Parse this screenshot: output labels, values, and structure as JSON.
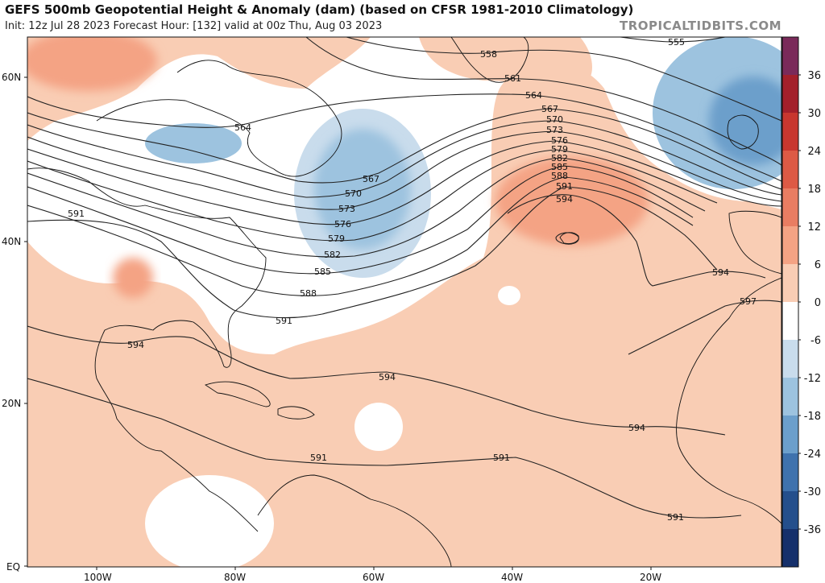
{
  "header": {
    "title": "GEFS 500mb Geopotential Height & Anomaly (dam) (based on CFSR 1981-2010 Climatology)",
    "subtitle": "Init: 12z Jul 28 2023   Forecast Hour: [132]   valid at 00z Thu, Aug 03 2023",
    "site": "TROPICALTIDBITS.COM"
  },
  "axes": {
    "lat_labels": [
      "60N",
      "40N",
      "20N",
      "EQ"
    ],
    "lon_labels": [
      "100W",
      "80W",
      "60W",
      "40W",
      "20W"
    ]
  },
  "colorbar": {
    "ticks": [
      "36",
      "30",
      "24",
      "18",
      "12",
      "6",
      "0",
      "-6",
      "-12",
      "-18",
      "-24",
      "-30",
      "-36"
    ],
    "colors": [
      "#7a2a5a",
      "#a3202b",
      "#c8372f",
      "#dd5a45",
      "#e97d62",
      "#f4a384",
      "#f9cdb4",
      "#ffffff",
      "#c9dcec",
      "#9dc3df",
      "#6c9fcb",
      "#3f72ad",
      "#244f8c",
      "#15306b"
    ]
  },
  "contours": {
    "labels": [
      "555",
      "558",
      "561",
      "564",
      "567",
      "570",
      "573",
      "576",
      "579",
      "582",
      "585",
      "588",
      "591",
      "594",
      "597",
      "564",
      "567",
      "570",
      "573",
      "576",
      "579",
      "582",
      "585",
      "588",
      "591",
      "594",
      "591",
      "594",
      "591",
      "591",
      "594",
      "594",
      "591"
    ]
  }
}
